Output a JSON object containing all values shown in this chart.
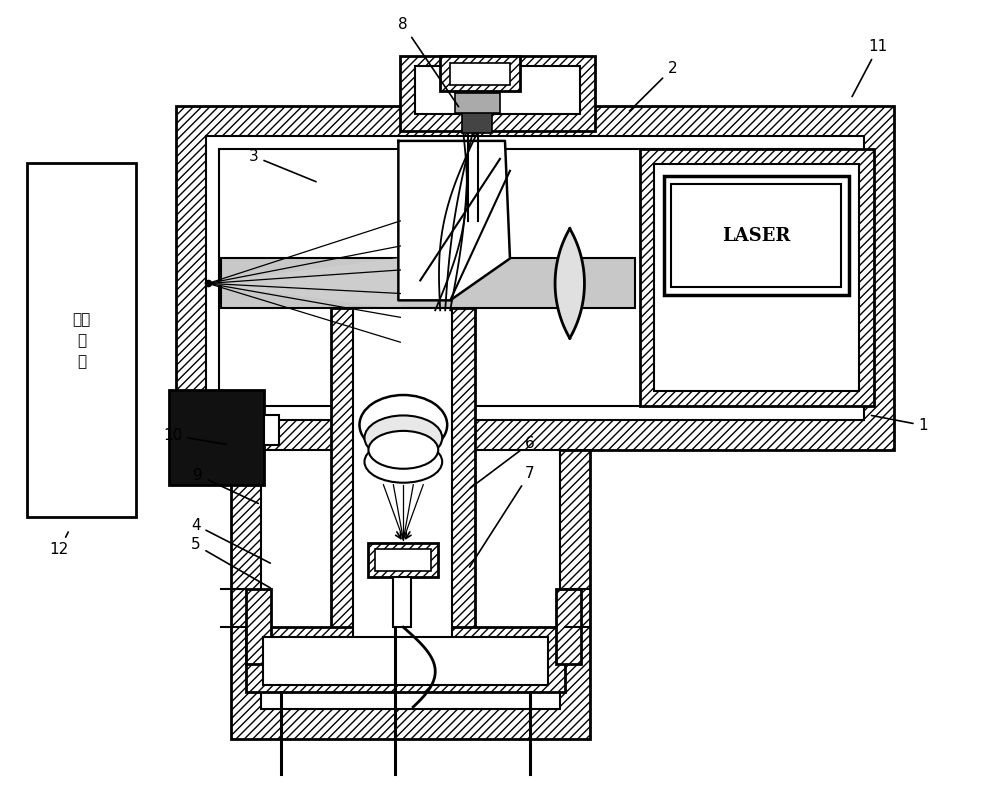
{
  "bg_color": "#ffffff",
  "lc": "#000000",
  "laser_text": "LASER",
  "sample_lines": [
    "待测",
    "样",
    "品"
  ],
  "figsize": [
    10.0,
    7.99
  ],
  "dpi": 100,
  "annotations": [
    [
      "1",
      [
        870,
        415
      ],
      [
        920,
        430
      ]
    ],
    [
      "2",
      [
        628,
        112
      ],
      [
        668,
        72
      ]
    ],
    [
      "3",
      [
        318,
        182
      ],
      [
        248,
        160
      ]
    ],
    [
      "4",
      [
        272,
        565
      ],
      [
        190,
        530
      ]
    ],
    [
      "5",
      [
        272,
        590
      ],
      [
        190,
        550
      ]
    ],
    [
      "6",
      [
        468,
        490
      ],
      [
        525,
        448
      ]
    ],
    [
      "7",
      [
        468,
        570
      ],
      [
        525,
        478
      ]
    ],
    [
      "8",
      [
        460,
        108
      ],
      [
        398,
        28
      ]
    ],
    [
      "9",
      [
        260,
        505
      ],
      [
        192,
        480
      ]
    ],
    [
      "10",
      [
        228,
        445
      ],
      [
        162,
        440
      ]
    ],
    [
      "11",
      [
        852,
        98
      ],
      [
        870,
        50
      ]
    ],
    [
      "12",
      [
        68,
        530
      ],
      [
        48,
        555
      ]
    ]
  ]
}
